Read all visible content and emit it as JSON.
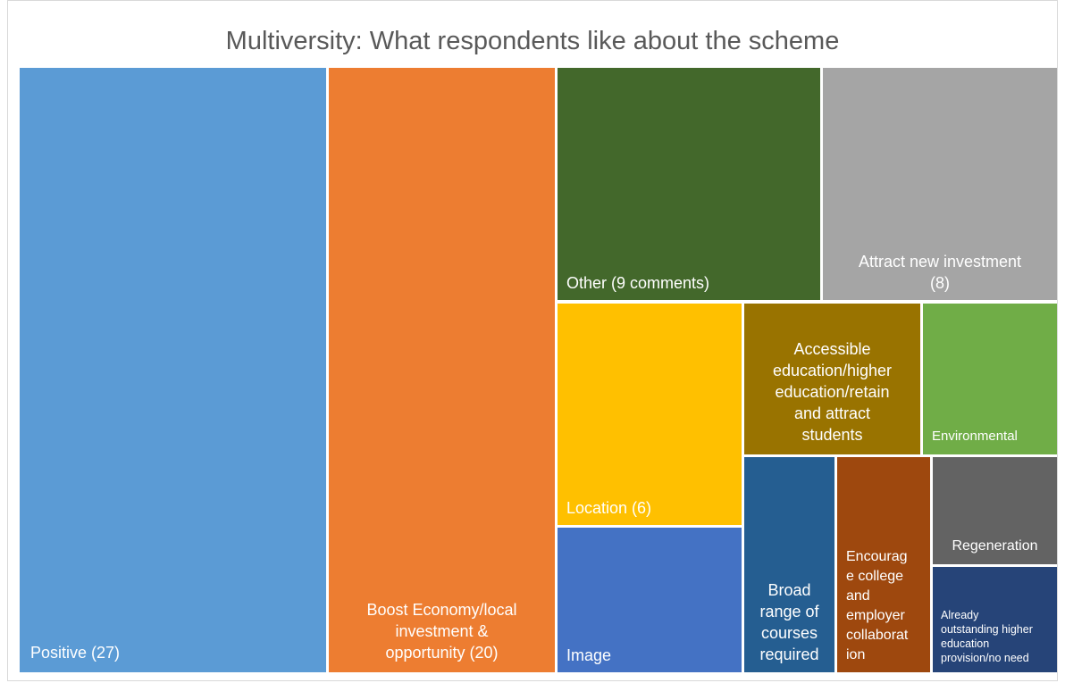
{
  "chart_data": {
    "type": "treemap",
    "title": "Multiversity: What respondents like about the scheme",
    "items": [
      {
        "label": "Positive (27)",
        "value": 27,
        "color": "#5b9bd5"
      },
      {
        "label": "Boost Economy/local investment & opportunity (20)",
        "value": 20,
        "color": "#ed7d31"
      },
      {
        "label": "Other (9 comments)",
        "value": 9,
        "color": "#43682b"
      },
      {
        "label": "Attract new investment (8)",
        "value": 8,
        "color": "#a5a5a5"
      },
      {
        "label": "Location (6)",
        "value": 6,
        "color": "#ffc000"
      },
      {
        "label": "Accessible education/higher education/retain and attract students",
        "color": "#997300"
      },
      {
        "label": "Environmental",
        "color": "#70ad47"
      },
      {
        "label": "Image",
        "color": "#4472c4"
      },
      {
        "label": "Broad range of courses required",
        "color": "#255e91"
      },
      {
        "label": "Encourage college and employer collaboration",
        "color": "#9e480e"
      },
      {
        "label": "Regeneration",
        "color": "#636363"
      },
      {
        "label": "Already outstanding higher education provision/no need",
        "color": "#264478"
      }
    ]
  }
}
